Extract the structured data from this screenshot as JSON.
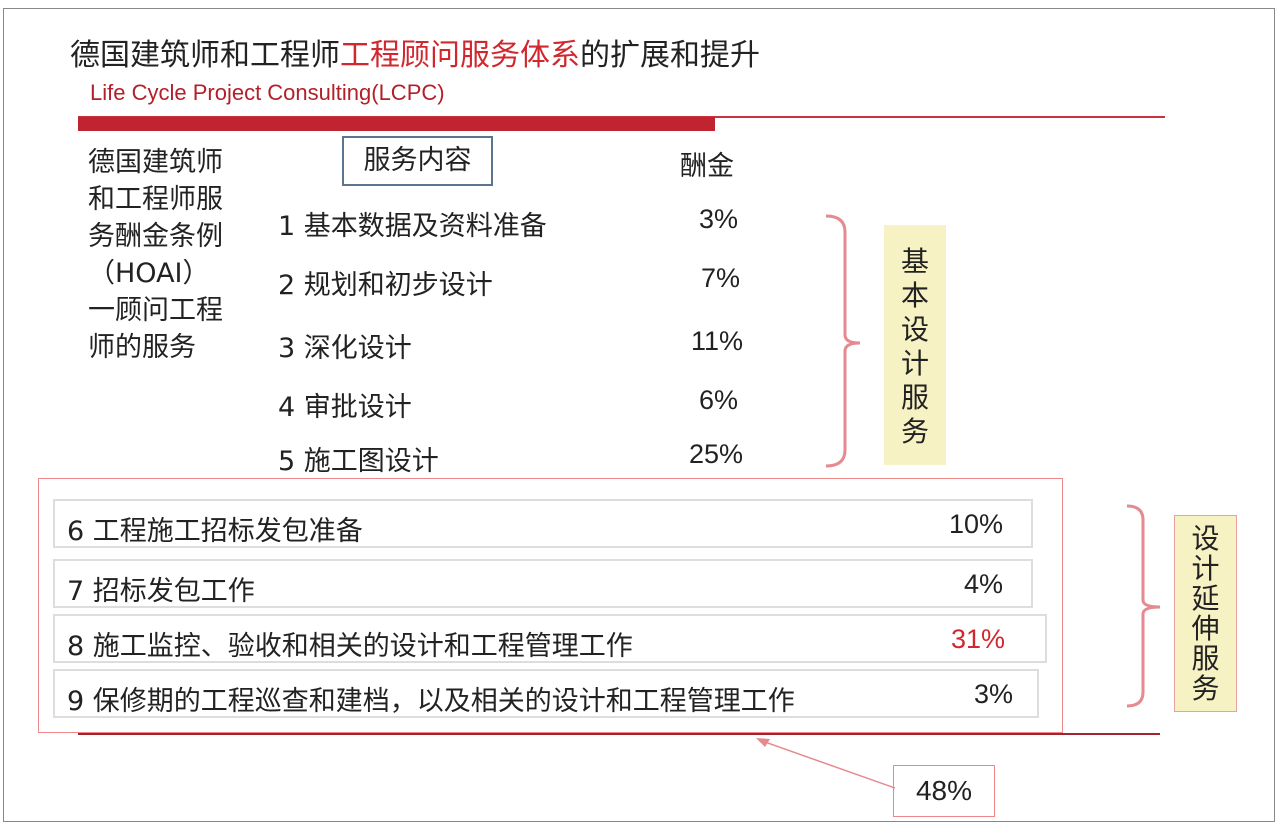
{
  "title": {
    "part1": "德国建筑师和工程师",
    "part2": "工程顾问服务体系",
    "part3": "的扩展和提升"
  },
  "subtitle": "Life Cycle Project Consulting(LCPC)",
  "left_text": [
    "德国建筑师",
    "和工程师服",
    "务酬金条例",
    "（HOAI）",
    "一顾问工程",
    "师的服务"
  ],
  "header": {
    "service": "服务内容",
    "fee": "酬金"
  },
  "basic_items": [
    {
      "label": "1 基本数据及资料准备",
      "fee": "3%"
    },
    {
      "label": "2 规划和初步设计",
      "fee": "7%"
    },
    {
      "label": "3 深化设计",
      "fee": "11%"
    },
    {
      "label": "4 审批设计",
      "fee": "6%"
    },
    {
      "label": "5 施工图设计",
      "fee": "25%"
    }
  ],
  "basic_group_label": "基本设计服务",
  "extended_items": [
    {
      "label": "6 工程施工招标发包准备",
      "fee": "10%"
    },
    {
      "label": "7 招标发包工作",
      "fee": "4%"
    },
    {
      "label": "8 施工监控、验收和相关的设计和工程管理工作",
      "fee": "31%"
    },
    {
      "label": "9 保修期的工程巡查和建档，以及相关的设计和工程管理工作",
      "fee": "3%"
    }
  ],
  "extended_group_label": "设计延伸服务",
  "total_extended": "48%",
  "colors": {
    "accent": "#bf2430",
    "highlight": "#d0282e",
    "label_bg": "#f7f2c4"
  }
}
